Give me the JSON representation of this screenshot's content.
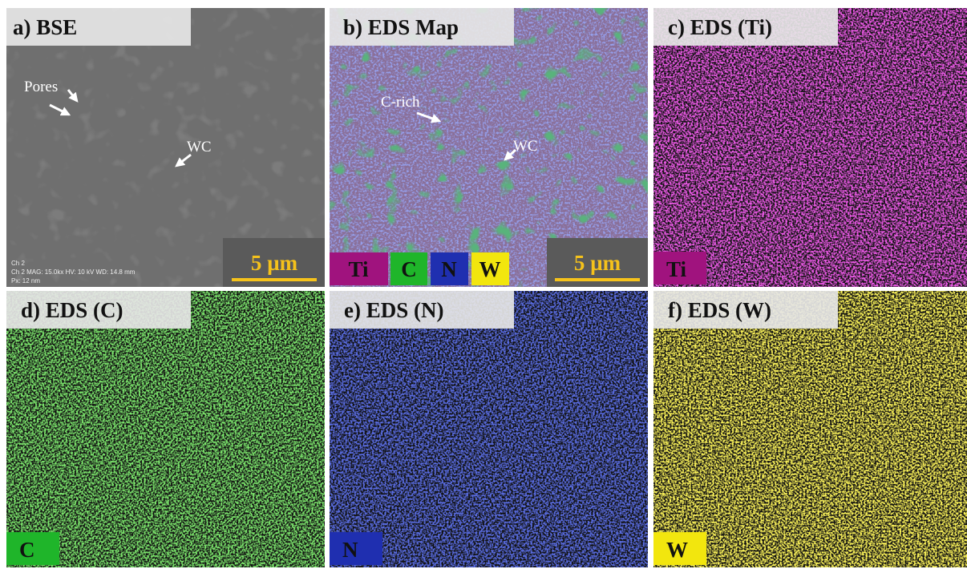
{
  "panels": [
    {
      "label": "a) BSE",
      "annotations": [
        "Pores",
        "WC"
      ],
      "scale_bar": "5 µm",
      "info": [
        "Ch 2",
        "Ch 2   MAG: 15.0kx   HV: 10 kV   WD: 14.8 mm",
        "Px: 12 nm"
      ]
    },
    {
      "label": "b) EDS Map",
      "annotations": [
        "C-rich",
        "WC"
      ],
      "legend": [
        "Ti",
        "C",
        "N",
        "W"
      ],
      "scale_bar": "5 µm"
    },
    {
      "label": "c) EDS (Ti)",
      "element": "Ti"
    },
    {
      "label": "d) EDS (C)",
      "element": "C"
    },
    {
      "label": "e) EDS (N)",
      "element": "N"
    },
    {
      "label": "f) EDS (W)",
      "element": "W"
    }
  ]
}
